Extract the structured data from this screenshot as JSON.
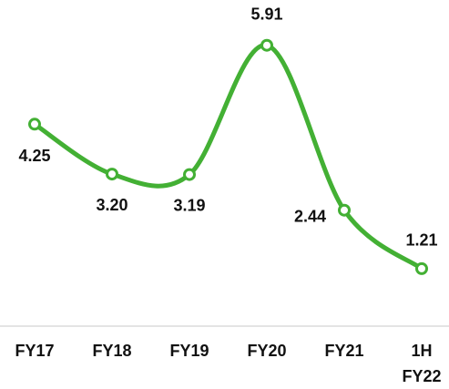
{
  "chart_data": {
    "type": "line",
    "categories": [
      "FY17",
      "FY18",
      "FY19",
      "FY20",
      "FY21",
      "1H FY22"
    ],
    "values": [
      4.25,
      3.2,
      3.19,
      5.91,
      2.44,
      1.21
    ],
    "value_labels": [
      "4.25",
      "3.20",
      "3.19",
      "5.91",
      "2.44",
      "1.21"
    ],
    "color": "#43b034",
    "ylim": [
      0,
      6
    ]
  }
}
